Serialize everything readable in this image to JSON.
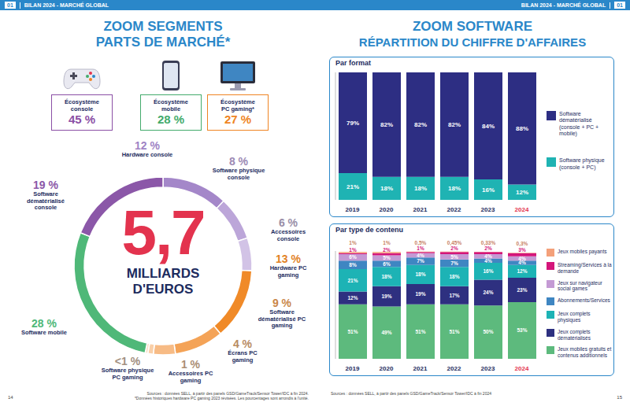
{
  "page": {
    "header": {
      "number": "01",
      "title": "BILAN 2024 - MARCHÉ GLOBAL"
    },
    "page_numbers": [
      "14",
      "15"
    ],
    "left": {
      "title": [
        "ZOOM SEGMENTS",
        "PARTS DE MARCHÉ*"
      ],
      "ecosystems": [
        {
          "label": "Écosystème console",
          "value": 45,
          "value_label": "45 %",
          "color": "#8b4fa5"
        },
        {
          "label": "Écosystème mobile",
          "value": 28,
          "value_label": "28 %",
          "color": "#43ab6c"
        },
        {
          "label": "Écosystème PC gaming*",
          "value": 27,
          "value_label": "27 %",
          "color": "#ef8423"
        }
      ],
      "sources": [
        "Sources : données SELL, à partir des panels GSD/GameTrack/Sensor Tower/IDC à fin 2024.",
        "*Données historiques hardware PC gaming 2023 révisées. Les pourcentages sont arrondis à l'unité."
      ]
    },
    "right": {
      "title": [
        "ZOOM SOFTWARE",
        "RÉPARTITION DU CHIFFRE D'AFFAIRES"
      ],
      "sources": "Sources : données SELL, à partir des panels GSD/GameTrack/Sensor Tower/IDC à fin 2024"
    }
  },
  "chart_data": [
    {
      "type": "donut",
      "center_value": 5.7,
      "center_value_label": "5,7",
      "center_text": "MILLIARDS D'EUROS",
      "categories": [
        "Hardware console",
        "Software physique console",
        "Accessoires console",
        "Hardware PC gaming",
        "Software dématérialisé PC gaming",
        "Écrans PC gaming",
        "Accessoires PC gaming",
        "Software physique PC gaming",
        "Software mobile",
        "Software dématérialisé console"
      ],
      "values": [
        12,
        8,
        6,
        13,
        9,
        4,
        1,
        0.5,
        28,
        19
      ],
      "value_labels": [
        "12 %",
        "8 %",
        "6 %",
        "13 %",
        "9 %",
        "4 %",
        "1 %",
        "<1 %",
        "28 %",
        "19 %"
      ],
      "colors": [
        "#a487c9",
        "#bca6d9",
        "#d2c3e6",
        "#f08a28",
        "#f4a357",
        "#f7bb85",
        "#f9cfa8",
        "#fbe0c8",
        "#4fb878",
        "#8b57a8"
      ],
      "data_labels": true
    },
    {
      "type": "bar",
      "title": "Par format",
      "stacked": true,
      "categories": [
        "2019",
        "2020",
        "2021",
        "2022",
        "2023",
        "2024"
      ],
      "series": [
        {
          "name": "Software physique (console + PC)",
          "color": "#1fb3b3",
          "values": [
            21,
            18,
            18,
            18,
            16,
            12
          ],
          "value_labels": [
            "21%",
            "18%",
            "18%",
            "18%",
            "16%",
            "12%"
          ]
        },
        {
          "name": "Software dématérialisé (console + PC + mobile)",
          "color": "#2d2e83",
          "values": [
            79,
            82,
            82,
            82,
            84,
            88
          ],
          "value_labels": [
            "79%",
            "82%",
            "82%",
            "82%",
            "84%",
            "88%"
          ]
        }
      ],
      "ylim": [
        0,
        100
      ],
      "tick_labels": "x",
      "data_labels": true,
      "legend": "right"
    },
    {
      "type": "bar",
      "title": "Par type de contenu",
      "stacked": true,
      "categories": [
        "2019",
        "2020",
        "2021",
        "2022",
        "2023",
        "2024"
      ],
      "series": [
        {
          "name": "Jeux mobiles gratuits et contenus additionnels",
          "color": "#5dba7d",
          "values": [
            51,
            49,
            51,
            51,
            50,
            53
          ],
          "value_labels": [
            "51%",
            "49%",
            "51%",
            "51%",
            "50%",
            "53%"
          ]
        },
        {
          "name": "Jeux complets dématérialisés",
          "color": "#2e3080",
          "values": [
            12,
            19,
            19,
            17,
            24,
            23
          ],
          "value_labels": [
            "12%",
            "19%",
            "19%",
            "17%",
            "24%",
            "23%"
          ]
        },
        {
          "name": "Jeux complets physiques",
          "color": "#1db3b5",
          "values": [
            21,
            18,
            18,
            18,
            16,
            12
          ],
          "value_labels": [
            "21%",
            "18%",
            "18%",
            "18%",
            "16%",
            "12%"
          ]
        },
        {
          "name": "Abonnements/Services",
          "color": "#3f86c2",
          "values": [
            8,
            6,
            7,
            7,
            4,
            4
          ],
          "value_labels": [
            "8%",
            "6%",
            "7%",
            "7%",
            "4%",
            "4%"
          ]
        },
        {
          "name": "Jeux sur navigateur social games",
          "color": "#c49ad4",
          "values": [
            6,
            5,
            4,
            5,
            4,
            4
          ],
          "value_labels": [
            "6%",
            "5%",
            "4%",
            "5%",
            "4%",
            "4%"
          ]
        },
        {
          "name": "Streaming/Services à la demande",
          "color": "#d4157a",
          "values": [
            1,
            2,
            1,
            2,
            2,
            3
          ],
          "value_labels": [
            "1%",
            "2%",
            "1%",
            "2%",
            "2%",
            "3%"
          ]
        },
        {
          "name": "Jeux mobiles payants",
          "color": "#f4a07a",
          "values": [
            1,
            1,
            0.5,
            0.45,
            0.33,
            0.3
          ],
          "value_labels": [
            "1%",
            "1%",
            "0,5%",
            "0,45%",
            "0,33%",
            "0,3%"
          ]
        }
      ],
      "ylim": [
        0,
        101
      ],
      "tick_labels": "x",
      "data_labels": true,
      "legend": "right"
    }
  ]
}
